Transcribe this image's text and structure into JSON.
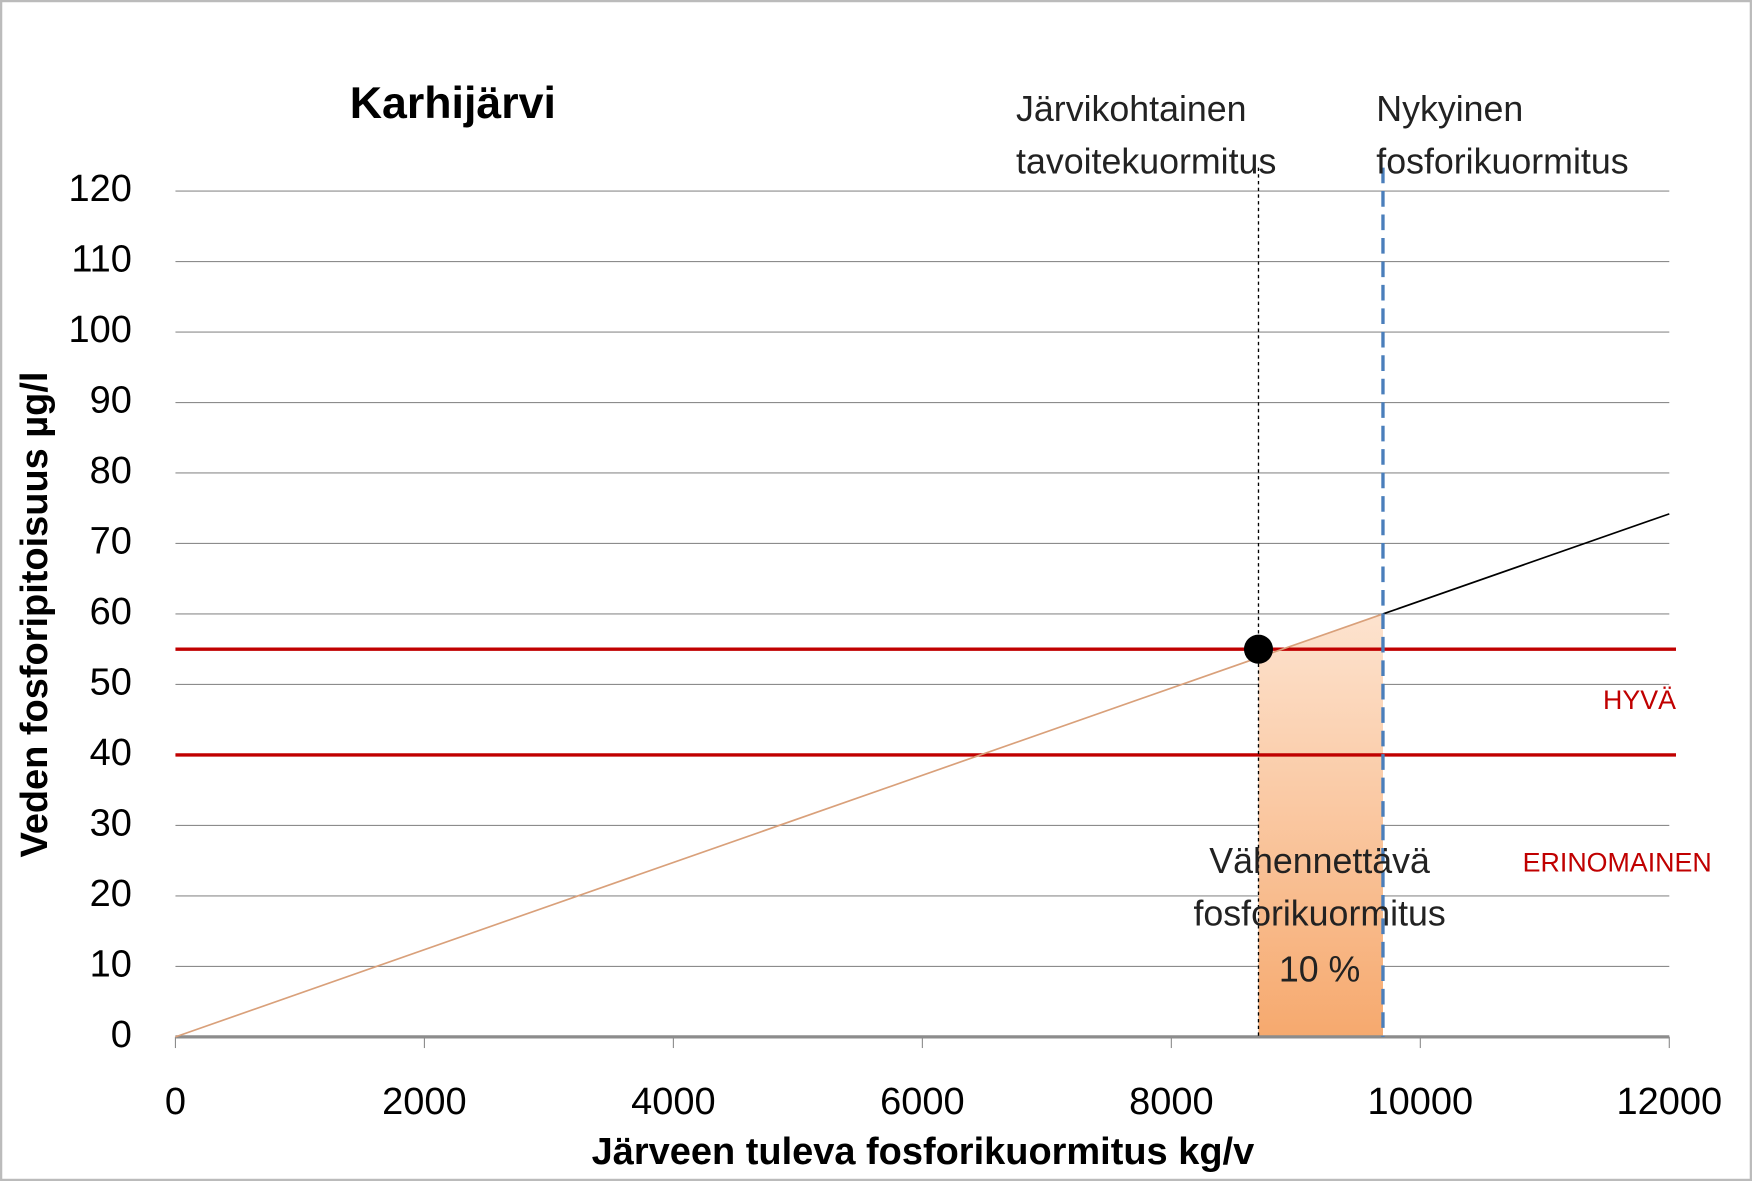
{
  "chart_data": {
    "type": "line",
    "title": "Karhijärvi",
    "xlabel": "Järveen tuleva fosforikuormitus kg/v",
    "ylabel": "Veden fosforipitoisuus µg/l",
    "xlim": [
      0,
      12000
    ],
    "ylim": [
      0,
      120
    ],
    "xticks": [
      0,
      2000,
      4000,
      6000,
      8000,
      10000,
      12000
    ],
    "yticks": [
      0,
      10,
      20,
      30,
      40,
      50,
      60,
      70,
      80,
      90,
      100,
      110,
      120
    ],
    "grid": true,
    "line": {
      "x": [
        0,
        9700,
        12000
      ],
      "values": [
        0,
        60,
        74.2
      ],
      "segment_colors": [
        "#d9a07a",
        "#000000"
      ]
    },
    "hlines": {
      "values": [
        55,
        40
      ],
      "color": "#c00000"
    },
    "zones": [
      {
        "label": "HYVÄ",
        "range": [
          40,
          55
        ]
      },
      {
        "label": "ERINOMAINEN",
        "range": [
          0,
          40
        ]
      }
    ],
    "vlines": [
      {
        "x": 8700,
        "label": [
          "Järvikohtainen",
          "tavoitekuormitus"
        ],
        "color": "#000000",
        "style": "dotted"
      },
      {
        "x": 9700,
        "label": [
          "Nykyinen",
          "fosforikuormitus"
        ],
        "color": "#4a7ebb",
        "style": "dashed"
      }
    ],
    "target_point": {
      "x": 8700,
      "y": 55
    },
    "reduction_label": [
      "Vähennettävä",
      "fosforikuormitus",
      "10 %"
    ]
  }
}
